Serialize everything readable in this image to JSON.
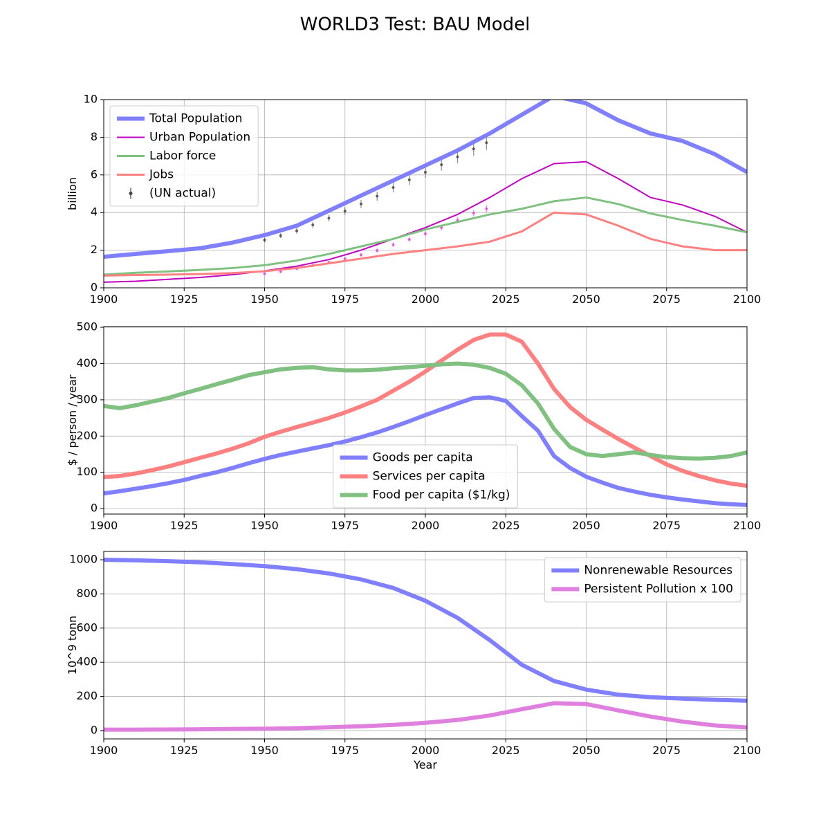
{
  "title": "WORLD3 Test: BAU Model",
  "chart_data": [
    {
      "type": "line",
      "ylabel": "billion",
      "legend": "upper left",
      "grid": true,
      "xlim": [
        1900,
        2100
      ],
      "xticks": [
        1900,
        1925,
        1950,
        1975,
        2000,
        2025,
        2050,
        2075,
        2100
      ],
      "ylim": [
        0,
        10
      ],
      "yticks": [
        0,
        2,
        4,
        6,
        8,
        10
      ],
      "x": [
        1900,
        1910,
        1920,
        1930,
        1940,
        1950,
        1960,
        1970,
        1980,
        1990,
        2000,
        2010,
        2020,
        2030,
        2040,
        2050,
        2060,
        2070,
        2080,
        2090,
        2100
      ],
      "series": [
        {
          "name": "Total Population",
          "color": "#8080ff",
          "values": [
            1.65,
            1.8,
            1.95,
            2.1,
            2.4,
            2.8,
            3.3,
            4.1,
            4.9,
            5.7,
            6.5,
            7.3,
            8.2,
            9.2,
            10.2,
            9.8,
            8.9,
            8.2,
            7.8,
            7.1,
            6.15
          ]
        },
        {
          "name": "Urban Population",
          "color": "#c000c0",
          "values": [
            0.3,
            0.35,
            0.45,
            0.55,
            0.7,
            0.9,
            1.15,
            1.5,
            2.0,
            2.6,
            3.2,
            3.9,
            4.8,
            5.8,
            6.6,
            6.7,
            5.8,
            4.8,
            4.4,
            3.8,
            2.95
          ]
        },
        {
          "name": "Labor force",
          "color": "#80c080",
          "values": [
            0.7,
            0.8,
            0.87,
            0.95,
            1.05,
            1.2,
            1.45,
            1.8,
            2.2,
            2.6,
            3.1,
            3.5,
            3.9,
            4.2,
            4.6,
            4.8,
            4.45,
            3.95,
            3.6,
            3.3,
            2.95
          ]
        },
        {
          "name": "Jobs",
          "color": "#ff8080",
          "values": [
            0.65,
            0.68,
            0.7,
            0.73,
            0.78,
            0.88,
            1.05,
            1.3,
            1.55,
            1.8,
            2.0,
            2.2,
            2.45,
            3.0,
            4.0,
            3.9,
            3.3,
            2.6,
            2.2,
            2.0,
            2.0
          ]
        }
      ],
      "errorbars": [
        {
          "name": "(UN actual)",
          "color": "#404040",
          "x": [
            1950,
            1955,
            1960,
            1965,
            1970,
            1975,
            1980,
            1985,
            1990,
            1995,
            2000,
            2005,
            2010,
            2015,
            2019
          ],
          "values": [
            2.54,
            2.77,
            3.03,
            3.34,
            3.7,
            4.08,
            4.46,
            4.87,
            5.33,
            5.74,
            6.14,
            6.54,
            6.96,
            7.38,
            7.71
          ],
          "errors": [
            0.12,
            0.13,
            0.15,
            0.16,
            0.18,
            0.2,
            0.22,
            0.24,
            0.26,
            0.28,
            0.3,
            0.32,
            0.34,
            0.36,
            0.38
          ]
        },
        {
          "color": "#e040e0",
          "x": [
            1950,
            1955,
            1960,
            1965,
            1970,
            1975,
            1980,
            1985,
            1990,
            1995,
            2000,
            2005,
            2010,
            2015,
            2019
          ],
          "values": [
            0.75,
            0.86,
            1.02,
            1.18,
            1.35,
            1.54,
            1.75,
            1.98,
            2.29,
            2.57,
            2.87,
            3.2,
            3.59,
            3.97,
            4.2
          ],
          "errors": [
            0.05,
            0.05,
            0.06,
            0.07,
            0.08,
            0.09,
            0.1,
            0.11,
            0.12,
            0.13,
            0.14,
            0.15,
            0.16,
            0.18,
            0.2
          ]
        }
      ]
    },
    {
      "type": "line",
      "ylabel": "$ / person / year",
      "legend": "lower center",
      "grid": true,
      "xlim": [
        1900,
        2100
      ],
      "xticks": [
        1900,
        1925,
        1950,
        1975,
        2000,
        2025,
        2050,
        2075,
        2100
      ],
      "ylim": [
        -15,
        502
      ],
      "yticks": [
        0,
        100,
        200,
        300,
        400,
        500
      ],
      "x": [
        1900,
        1905,
        1910,
        1915,
        1920,
        1925,
        1930,
        1935,
        1940,
        1945,
        1950,
        1955,
        1960,
        1965,
        1970,
        1975,
        1980,
        1985,
        1990,
        1995,
        2000,
        2005,
        2010,
        2015,
        2020,
        2025,
        2030,
        2035,
        2040,
        2045,
        2050,
        2055,
        2060,
        2065,
        2070,
        2075,
        2080,
        2085,
        2090,
        2095,
        2100
      ],
      "series": [
        {
          "name": "Goods per capita",
          "color": "#8080ff",
          "values": [
            42,
            48,
            55,
            62,
            70,
            79,
            90,
            100,
            112,
            125,
            137,
            148,
            157,
            166,
            175,
            185,
            197,
            210,
            225,
            241,
            258,
            274,
            290,
            305,
            307,
            297,
            255,
            215,
            145,
            112,
            88,
            72,
            57,
            47,
            38,
            31,
            25,
            20,
            15,
            12,
            10
          ]
        },
        {
          "name": "Services per capita",
          "color": "#ff8080",
          "values": [
            87,
            90,
            97,
            106,
            116,
            128,
            140,
            152,
            165,
            180,
            198,
            212,
            225,
            237,
            250,
            265,
            282,
            300,
            325,
            350,
            378,
            408,
            438,
            465,
            480,
            480,
            460,
            400,
            330,
            280,
            245,
            218,
            192,
            168,
            145,
            122,
            104,
            90,
            78,
            69,
            63
          ]
        },
        {
          "name": "Food per capita ($1/kg)",
          "color": "#80c080",
          "values": [
            283,
            277,
            285,
            295,
            305,
            318,
            330,
            343,
            355,
            368,
            376,
            384,
            388,
            390,
            384,
            381,
            381,
            383,
            387,
            390,
            394,
            398,
            400,
            397,
            388,
            372,
            340,
            290,
            220,
            170,
            150,
            145,
            150,
            155,
            148,
            142,
            139,
            138,
            140,
            145,
            155
          ]
        }
      ]
    },
    {
      "type": "line",
      "ylabel": "10^9 tonn",
      "xlabel": "Year",
      "legend": "upper right",
      "grid": true,
      "xlim": [
        1900,
        2100
      ],
      "xticks": [
        1900,
        1925,
        1950,
        1975,
        2000,
        2025,
        2050,
        2075,
        2100
      ],
      "ylim": [
        -49,
        1049
      ],
      "yticks": [
        0,
        200,
        400,
        600,
        800,
        1000
      ],
      "x": [
        1900,
        1910,
        1920,
        1930,
        1940,
        1950,
        1960,
        1970,
        1980,
        1990,
        2000,
        2010,
        2020,
        2030,
        2040,
        2050,
        2060,
        2070,
        2080,
        2090,
        2100
      ],
      "series": [
        {
          "name": "Nonrenewable Resources",
          "color": "#8080ff",
          "values": [
            1000,
            997,
            992,
            985,
            975,
            963,
            945,
            920,
            885,
            835,
            760,
            660,
            530,
            385,
            290,
            240,
            210,
            195,
            187,
            180,
            175
          ]
        },
        {
          "name": "Persistent Pollution x 100",
          "color": "#df80df",
          "values": [
            5,
            5,
            6,
            7,
            9,
            11,
            14,
            19,
            25,
            33,
            45,
            62,
            88,
            125,
            160,
            155,
            118,
            82,
            52,
            30,
            18
          ]
        }
      ]
    }
  ]
}
